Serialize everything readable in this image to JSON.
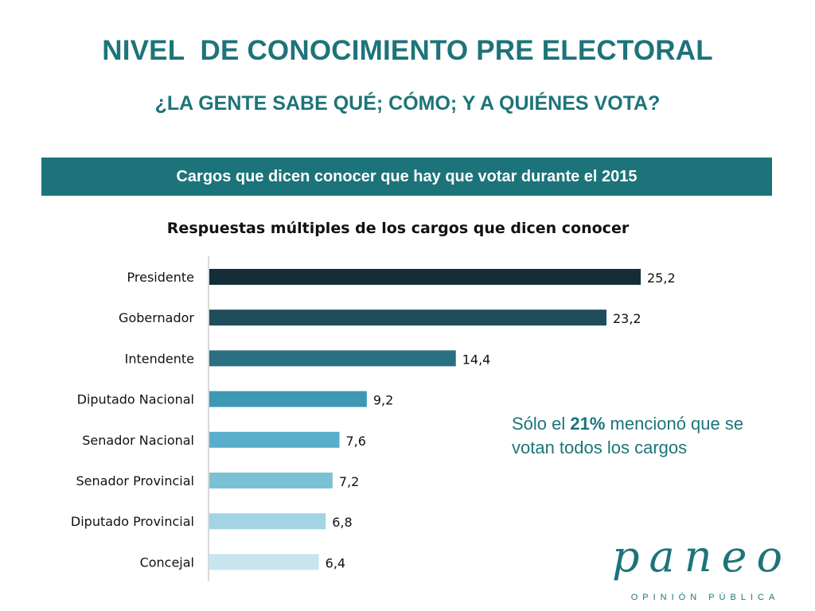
{
  "header": {
    "title": "NIVEL  DE CONOCIMIENTO PRE ELECTORAL",
    "subtitle": "¿LA GENTE SABE QUÉ; CÓMO; Y A QUIÉNES VOTA?"
  },
  "banner": {
    "text": "Cargos que dicen conocer que hay que votar durante el 2015"
  },
  "note": {
    "prefix": "Sólo el ",
    "highlight": "21%",
    "suffix": " mencionó que se votan todos los cargos"
  },
  "logo": {
    "name": "paneo",
    "tagline": "OPINIÓN PÚBLICA"
  },
  "colors": {
    "brand": "#1d7479",
    "banner": "#1c737a"
  },
  "chart_data": {
    "type": "bar",
    "orientation": "horizontal",
    "title": "Respuestas múltiples de los cargos que dicen conocer",
    "categories": [
      "Presidente",
      "Gobernador",
      "Intendente",
      "Diputado Nacional",
      "Senador Nacional",
      "Senador Provincial",
      "Diputado Provincial",
      "Concejal"
    ],
    "values": [
      25.2,
      23.2,
      14.4,
      9.2,
      7.6,
      7.2,
      6.8,
      6.4
    ],
    "labels": [
      "25,2",
      "23,2",
      "14,4",
      "9,2",
      "7,6",
      "7,2",
      "6,8",
      "6,4"
    ],
    "colors": [
      "#132e37",
      "#1f4d5c",
      "#2b6f82",
      "#3d98b5",
      "#58aecb",
      "#7bc1d6",
      "#a3d4e4",
      "#c8e5ee"
    ],
    "xlim": [
      0,
      25.2
    ],
    "grid": false,
    "legend": "none"
  }
}
